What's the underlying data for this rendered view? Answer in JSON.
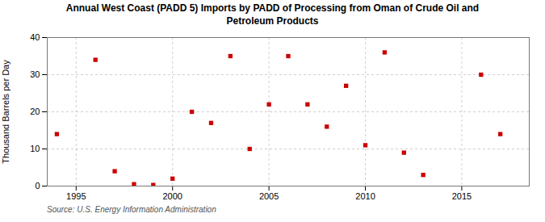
{
  "chart_data": {
    "type": "scatter",
    "title": "Annual West Coast (PADD 5) Imports by PADD of Processing from Oman of Crude Oil and\nPetroleum Products",
    "ylabel": "Thousand Barrels per Day",
    "source": "Source: U.S. Energy Information Administration",
    "x": [
      1994,
      1996,
      1997,
      1998,
      1999,
      2000,
      2001,
      2002,
      2003,
      2004,
      2005,
      2006,
      2007,
      2008,
      2009,
      2010,
      2011,
      2012,
      2013,
      2016,
      2017
    ],
    "values": [
      14,
      34,
      4,
      0.5,
      0.3,
      2,
      20,
      17,
      35,
      10,
      22,
      35,
      22,
      16,
      27,
      11,
      36,
      9,
      3,
      30,
      14
    ],
    "color": "#cc0000",
    "marker": "square",
    "xlim": [
      1993.5,
      2018.5
    ],
    "xticks": [
      1995,
      2000,
      2005,
      2010,
      2015
    ],
    "ylim": [
      0,
      40
    ],
    "yticks": [
      0,
      10,
      20,
      30,
      40
    ],
    "grid": true
  }
}
